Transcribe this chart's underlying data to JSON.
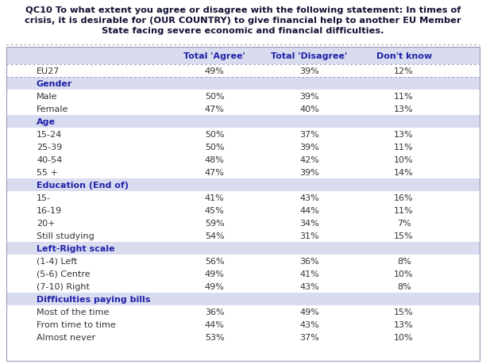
{
  "title_line1": "QC10 To what extent you agree or disagree with the following statement: In times of",
  "title_line2": "crisis, it is desirable for (OUR COUNTRY) to give financial help to another EU Member",
  "title_line3": "State facing severe economic and financial difficulties.",
  "col_headers": [
    "Total 'Agree'",
    "Total 'Disagree'",
    "Don't know"
  ],
  "rows": [
    {
      "label": "EU27",
      "indent": false,
      "is_header": false,
      "is_eu27": true,
      "values": [
        "49%",
        "39%",
        "12%"
      ]
    },
    {
      "label": "Gender",
      "indent": false,
      "is_header": true,
      "values": []
    },
    {
      "label": "Male",
      "indent": true,
      "is_header": false,
      "values": [
        "50%",
        "39%",
        "11%"
      ]
    },
    {
      "label": "Female",
      "indent": true,
      "is_header": false,
      "values": [
        "47%",
        "40%",
        "13%"
      ]
    },
    {
      "label": "Age",
      "indent": false,
      "is_header": true,
      "values": []
    },
    {
      "label": "15-24",
      "indent": true,
      "is_header": false,
      "values": [
        "50%",
        "37%",
        "13%"
      ]
    },
    {
      "label": "25-39",
      "indent": true,
      "is_header": false,
      "values": [
        "50%",
        "39%",
        "11%"
      ]
    },
    {
      "label": "40-54",
      "indent": true,
      "is_header": false,
      "values": [
        "48%",
        "42%",
        "10%"
      ]
    },
    {
      "label": "55 +",
      "indent": true,
      "is_header": false,
      "values": [
        "47%",
        "39%",
        "14%"
      ]
    },
    {
      "label": "Education (End of)",
      "indent": false,
      "is_header": true,
      "values": []
    },
    {
      "label": "15-",
      "indent": true,
      "is_header": false,
      "values": [
        "41%",
        "43%",
        "16%"
      ]
    },
    {
      "label": "16-19",
      "indent": true,
      "is_header": false,
      "values": [
        "45%",
        "44%",
        "11%"
      ]
    },
    {
      "label": "20+",
      "indent": true,
      "is_header": false,
      "values": [
        "59%",
        "34%",
        "7%"
      ]
    },
    {
      "label": "Still studying",
      "indent": true,
      "is_header": false,
      "values": [
        "54%",
        "31%",
        "15%"
      ]
    },
    {
      "label": "Left-Right scale",
      "indent": false,
      "is_header": true,
      "values": []
    },
    {
      "label": "(1-4) Left",
      "indent": true,
      "is_header": false,
      "values": [
        "56%",
        "36%",
        "8%"
      ]
    },
    {
      "label": "(5-6) Centre",
      "indent": true,
      "is_header": false,
      "values": [
        "49%",
        "41%",
        "10%"
      ]
    },
    {
      "label": "(7-10) Right",
      "indent": true,
      "is_header": false,
      "values": [
        "49%",
        "43%",
        "8%"
      ]
    },
    {
      "label": "Difficulties paying bills",
      "indent": false,
      "is_header": true,
      "values": []
    },
    {
      "label": "Most of the time",
      "indent": true,
      "is_header": false,
      "values": [
        "36%",
        "49%",
        "15%"
      ]
    },
    {
      "label": "From time to time",
      "indent": true,
      "is_header": false,
      "values": [
        "44%",
        "43%",
        "13%"
      ]
    },
    {
      "label": "Almost never",
      "indent": true,
      "is_header": false,
      "values": [
        "53%",
        "37%",
        "10%"
      ]
    }
  ],
  "bg_color_section": "#d9dcef",
  "bg_color_white": "#ffffff",
  "bg_color_title_area": "#ffffff",
  "text_color_header": "#2222aa",
  "text_color_normal": "#333333",
  "text_color_title": "#111133",
  "col_header_bg": "#d9dcef",
  "border_color": "#9999bb",
  "title_bg": "#ffffff",
  "figwidth": 6.12,
  "figheight": 4.6,
  "dpi": 100
}
